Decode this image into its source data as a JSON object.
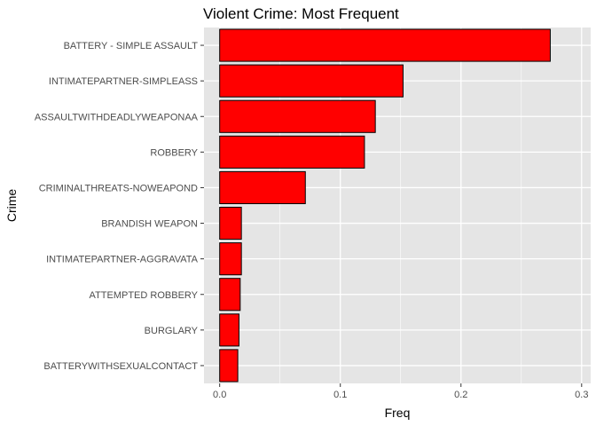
{
  "chart_data": {
    "type": "bar",
    "orientation": "horizontal",
    "title": "Violent Crime: Most Frequent",
    "xlabel": "Freq",
    "ylabel": "Crime",
    "categories": [
      "BATTERY - SIMPLE ASSAULT",
      "INTIMATEPARTNER-SIMPLEASS",
      "ASSAULTWITHDEADLYWEAPONAA",
      "ROBBERY",
      "CRIMINALTHREATS-NOWEAPOND",
      "BRANDISH WEAPON",
      "INTIMATEPARTNER-AGGRAVATA",
      "ATTEMPTED ROBBERY",
      "BURGLARY",
      "BATTERYWITHSEXUALCONTACT"
    ],
    "values": [
      0.274,
      0.152,
      0.129,
      0.12,
      0.071,
      0.018,
      0.018,
      0.017,
      0.016,
      0.015
    ],
    "xlim": [
      -0.013,
      0.3075
    ],
    "xticks": [
      0.0,
      0.1,
      0.2,
      0.3
    ],
    "xtick_labels": [
      "0.0",
      "0.1",
      "0.2",
      "0.3"
    ],
    "grid": true,
    "bar_fill": "#ff0000",
    "bar_stroke": "#000000",
    "panel_background": "#e5e5e5",
    "grid_color": "#ffffff"
  }
}
